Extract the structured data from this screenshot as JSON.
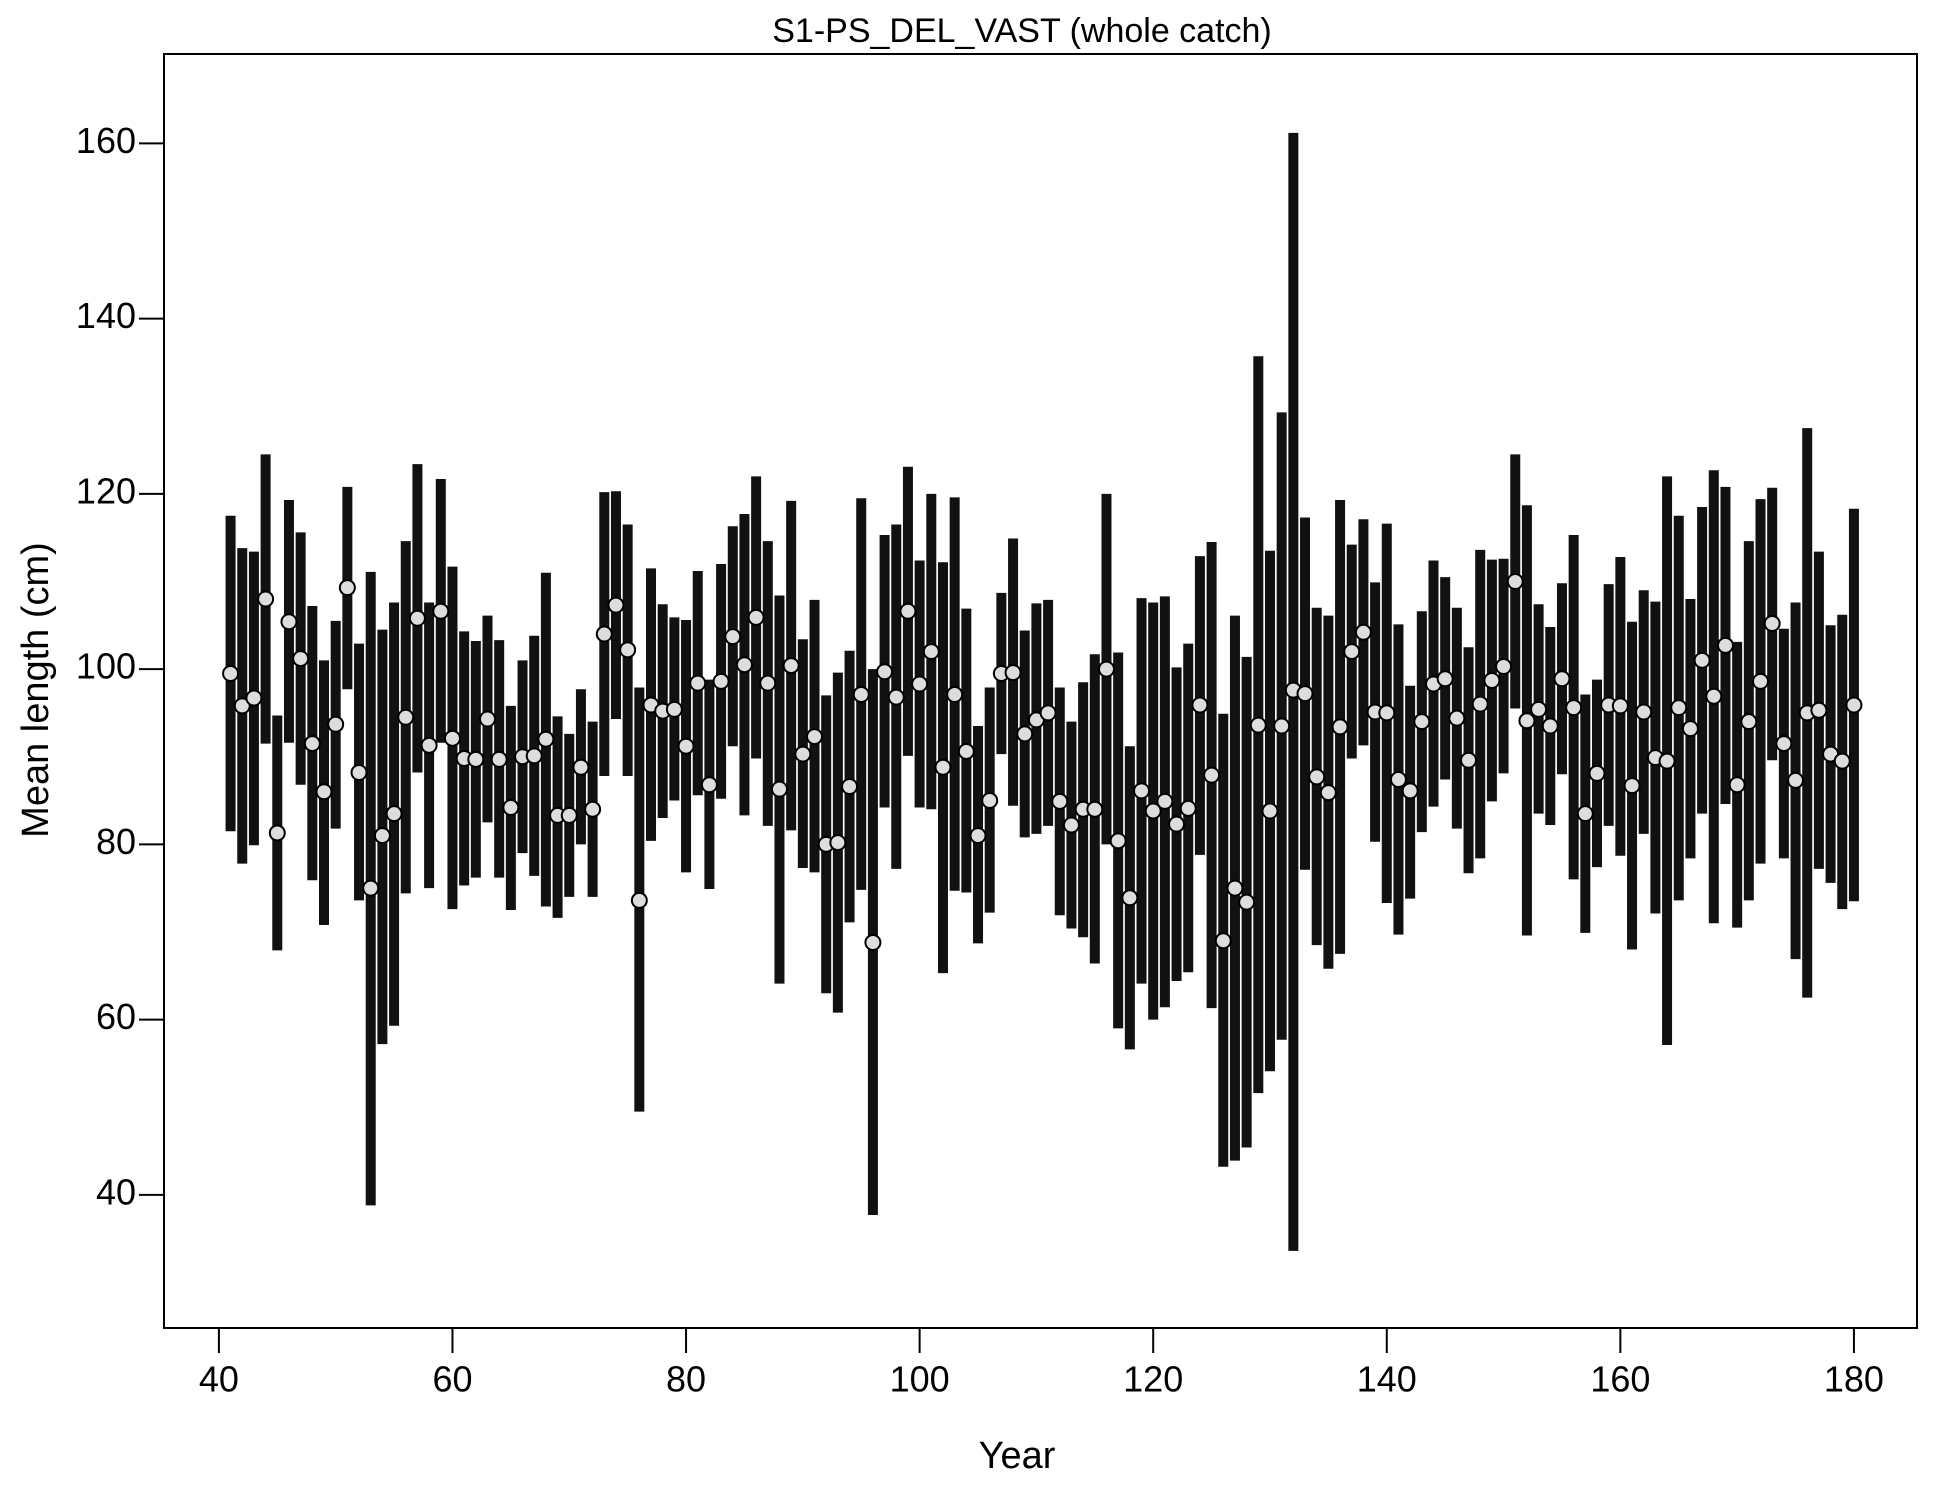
{
  "chart_data": {
    "type": "errorbar",
    "title": "S1-PS_DEL_VAST (whole catch)",
    "x_label": "Year",
    "y_label": "Mean length (cm)",
    "xlim": [
      35.3,
      185.4
    ],
    "ylim": [
      24.8,
      170.2
    ],
    "xticks": [
      40,
      60,
      80,
      100,
      120,
      140,
      160,
      180
    ],
    "yticks": [
      40,
      60,
      80,
      100,
      120,
      140,
      160
    ],
    "bar_color": "#111111",
    "point_color": "#dddddd",
    "x": [
      41,
      42,
      43,
      44,
      45,
      46,
      47,
      48,
      49,
      50,
      51,
      52,
      53,
      54,
      55,
      56,
      57,
      58,
      59,
      60,
      61,
      62,
      63,
      64,
      65,
      66,
      67,
      68,
      69,
      70,
      71,
      72,
      73,
      74,
      75,
      76,
      77,
      78,
      79,
      80,
      81,
      82,
      83,
      84,
      85,
      86,
      87,
      88,
      89,
      90,
      91,
      92,
      93,
      94,
      95,
      96,
      97,
      98,
      99,
      100,
      101,
      102,
      103,
      104,
      105,
      106,
      107,
      108,
      109,
      110,
      111,
      112,
      113,
      114,
      115,
      116,
      117,
      118,
      119,
      120,
      121,
      122,
      123,
      124,
      125,
      126,
      127,
      128,
      129,
      130,
      131,
      132,
      133,
      134,
      135,
      136,
      137,
      138,
      139,
      140,
      141,
      142,
      143,
      144,
      145,
      146,
      147,
      148,
      149,
      150,
      151,
      152,
      153,
      154,
      155,
      156,
      157,
      158,
      159,
      160,
      161,
      162,
      163,
      164,
      165,
      166,
      167,
      168,
      169,
      170,
      171,
      172,
      173,
      174,
      175,
      176,
      177,
      178,
      179,
      180
    ],
    "values": [
      99.5,
      95.8,
      96.7,
      108,
      81.3,
      105.4,
      101.2,
      91.5,
      86,
      93.7,
      109.3,
      88.2,
      75,
      81,
      83.5,
      94.5,
      105.8,
      91.3,
      106.6,
      92.1,
      89.8,
      89.7,
      94.3,
      89.7,
      84.2,
      90,
      90.1,
      92,
      83.3,
      83.3,
      88.8,
      84,
      104,
      107.3,
      102.2,
      73.6,
      95.9,
      95.2,
      95.4,
      91.2,
      98.4,
      86.8,
      98.6,
      103.7,
      100.5,
      105.9,
      98.4,
      86.3,
      100.4,
      90.3,
      92.3,
      80,
      80.2,
      86.6,
      97.1,
      68.8,
      99.7,
      96.8,
      106.6,
      98.3,
      102,
      88.8,
      97.1,
      90.6,
      81,
      85,
      99.5,
      99.6,
      92.6,
      94.2,
      95,
      84.9,
      82.2,
      84,
      84,
      100,
      80.4,
      73.9,
      86.1,
      83.8,
      84.9,
      82.3,
      84.1,
      95.9,
      87.9,
      69,
      75,
      73.4,
      93.6,
      83.8,
      93.5,
      97.6,
      97.2,
      87.7,
      85.9,
      93.4,
      102,
      104.2,
      95.1,
      95,
      87.4,
      86.1,
      94,
      98.3,
      98.9,
      94.4,
      89.6,
      96,
      98.7,
      100.3,
      110,
      94.1,
      95.4,
      93.5,
      98.9,
      95.6,
      83.5,
      88.1,
      95.9,
      95.8,
      86.7,
      95.1,
      89.9,
      89.5,
      95.6,
      93.2,
      101,
      96.9,
      102.7,
      86.8,
      94,
      98.6,
      105.2,
      91.5,
      87.3,
      95,
      95.3,
      90.3,
      89.5,
      95.9
    ],
    "lower": [
      81.5,
      77.8,
      79.9,
      91.5,
      67.9,
      91.6,
      86.8,
      75.9,
      70.8,
      81.8,
      97.7,
      73.6,
      38.8,
      57.2,
      59.3,
      74.4,
      88.2,
      75,
      91.6,
      72.6,
      75.3,
      76.2,
      82.5,
      76.2,
      72.5,
      79,
      76.4,
      72.9,
      71.6,
      74,
      80,
      74,
      87.8,
      94.3,
      87.8,
      49.5,
      80.4,
      83,
      85,
      76.8,
      85.6,
      74.9,
      85.2,
      91.2,
      83.3,
      89.8,
      82.1,
      64.1,
      81.6,
      77.3,
      76.8,
      63,
      60.8,
      71.1,
      74.8,
      37.7,
      84.2,
      77.2,
      90.1,
      84.2,
      84,
      65.3,
      74.7,
      74.5,
      68.7,
      72.2,
      90.3,
      84.4,
      80.8,
      81.2,
      82.1,
      71.9,
      70.4,
      69.4,
      66.4,
      80,
      59,
      56.6,
      64.1,
      60,
      61.4,
      64.4,
      65.4,
      78.8,
      61.3,
      43.2,
      43.9,
      45.4,
      51.6,
      54.1,
      57.7,
      33.6,
      77.1,
      68.5,
      65.8,
      67.5,
      89.8,
      91.3,
      80.3,
      73.3,
      69.7,
      73.8,
      81.4,
      84.3,
      87.4,
      81.8,
      76.7,
      78.4,
      84.9,
      88.1,
      95.5,
      69.6,
      83.5,
      82.2,
      88,
      76,
      69.9,
      77.4,
      82.1,
      78.7,
      68,
      81.2,
      72.1,
      57.1,
      73.6,
      78.4,
      83.5,
      71,
      84.6,
      70.5,
      73.6,
      77.8,
      89.6,
      78.4,
      66.9,
      62.5,
      77.2,
      75.6,
      72.6,
      73.5
    ],
    "upper": [
      117.5,
      113.8,
      113.4,
      124.5,
      94.7,
      119.3,
      115.6,
      107.2,
      101,
      105.5,
      120.8,
      102.9,
      111.1,
      104.5,
      107.6,
      114.6,
      123.4,
      107.6,
      121.7,
      111.7,
      104.3,
      103.2,
      106.1,
      103.3,
      95.8,
      101,
      103.8,
      111,
      94.6,
      92.6,
      97.7,
      94,
      120.2,
      120.3,
      116.5,
      97.9,
      111.5,
      107.4,
      105.9,
      105.6,
      111.2,
      98.8,
      112,
      116.3,
      117.7,
      122,
      114.6,
      108.4,
      119.2,
      103.4,
      107.9,
      97,
      99.6,
      102.1,
      119.5,
      100,
      115.3,
      116.5,
      123.1,
      112.4,
      120,
      112.2,
      119.6,
      106.9,
      93.5,
      97.9,
      108.7,
      114.9,
      104.4,
      107.5,
      107.9,
      97.9,
      94,
      98.5,
      101.7,
      120,
      101.9,
      91.2,
      108.1,
      107.6,
      108.3,
      100.2,
      102.9,
      112.9,
      114.5,
      94.9,
      106.1,
      101.4,
      135.7,
      113.5,
      129.3,
      161.2,
      117.3,
      107,
      106.1,
      119.3,
      114.2,
      117.1,
      109.9,
      116.6,
      105.1,
      98.1,
      106.6,
      112.4,
      110.5,
      107,
      102.5,
      113.6,
      112.5,
      112.6,
      124.5,
      118.7,
      107.4,
      104.8,
      109.8,
      115.3,
      97.1,
      98.8,
      109.7,
      112.8,
      105.4,
      109,
      107.7,
      122,
      117.5,
      108,
      118.5,
      122.7,
      120.8,
      103.1,
      114.6,
      119.4,
      120.7,
      104.6,
      107.6,
      127.5,
      113.4,
      105,
      106.2,
      118.3
    ]
  }
}
